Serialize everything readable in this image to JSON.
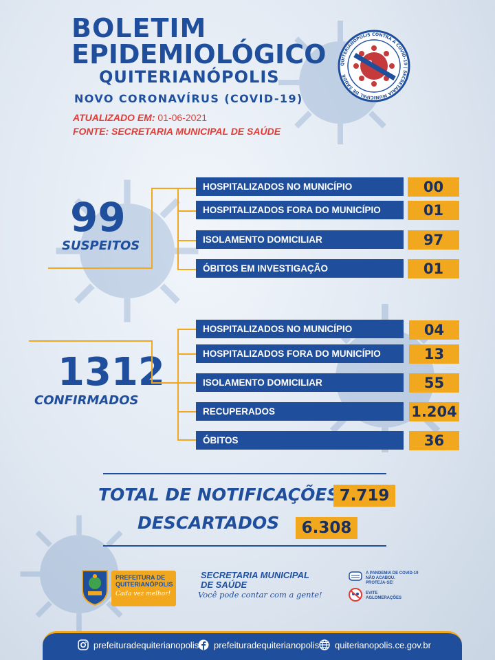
{
  "header": {
    "title_line1": "BOLETIM",
    "title_line2": "EPIDEMIOLÓGICO",
    "city": "QUITERIANÓPOLIS",
    "subtitle": "NOVO CORONAVÍRUS (COVID-19)",
    "updated_label": "ATUALIZADO EM:",
    "updated_date": "01-06-2021",
    "source": "FONTE: SECRETARIA MUNICIPAL DE SAÚDE"
  },
  "seal_text": "QUITERIANÓPOLIS CONTRA A COVID-19 | SECRETARIA MUNICIPAL DE SAÚDE",
  "suspects": {
    "total": "99",
    "label": "SUSPEITOS",
    "rows": [
      {
        "label": "HOSPITALIZADOS NO MUNICÍPIO",
        "value": "00"
      },
      {
        "label": "HOSPITALIZADOS FORA DO MUNICÍPIO",
        "value": "01"
      },
      {
        "label": "ISOLAMENTO DOMICILIAR",
        "value": "97"
      },
      {
        "label": "ÓBITOS EM INVESTIGAÇÃO",
        "value": "01"
      }
    ]
  },
  "confirmed": {
    "total": "1312",
    "label": "CONFIRMADOS",
    "rows": [
      {
        "label": "HOSPITALIZADOS NO MUNICÍPIO",
        "value": "04"
      },
      {
        "label": "HOSPITALIZADOS FORA DO MUNICÍPIO",
        "value": "13"
      },
      {
        "label": "ISOLAMENTO DOMICILIAR",
        "value": "55"
      },
      {
        "label": "RECUPERADOS",
        "value": "1.204"
      },
      {
        "label": "ÓBITOS",
        "value": "36"
      }
    ]
  },
  "totals": {
    "notifications_label": "TOTAL DE NOTIFICAÇÕES",
    "notifications_value": "7.719",
    "discarded_label": "DESCARTADOS",
    "discarded_value": "6.308"
  },
  "logos": {
    "prefeitura_line1": "PREFEITURA DE",
    "prefeitura_line2": "QUITERIANÓPOLIS",
    "prefeitura_slogan": "Cada vez melhor!",
    "secretaria_line1": "SECRETARIA MUNICIPAL",
    "secretaria_line2": "DE SAÚDE",
    "secretaria_slogan": "Você pode contar com a gente!",
    "warning1": [
      "A PANDEMIA DE COVID-19",
      "NÃO ACABOU.",
      "PROTEJA-SE!"
    ],
    "warning2": [
      "EVITE",
      "AGLOMERAÇÕES"
    ]
  },
  "footer": {
    "instagram": "prefeituradequiterianopolis",
    "facebook": "prefeituradequiterianopolis",
    "website": "quiterianopolis.ce.gov.br"
  },
  "colors": {
    "brand_blue": "#1f4f9c",
    "accent_orange": "#f2a81e",
    "alert_red": "#e23b33"
  }
}
